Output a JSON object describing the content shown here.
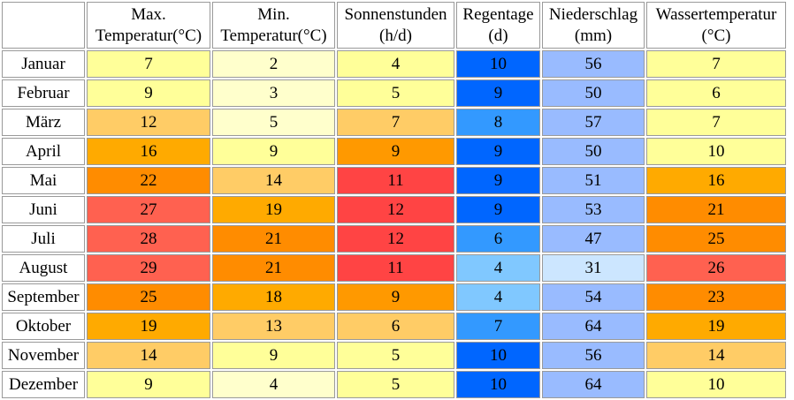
{
  "headers": [
    {
      "line1": "Max.",
      "line2": "Temperatur(°C)"
    },
    {
      "line1": "Min.",
      "line2": "Temperatur(°C)"
    },
    {
      "line1": "Sonnenstunden",
      "line2": "(h/d)"
    },
    {
      "line1": "Regentage",
      "line2": "(d)"
    },
    {
      "line1": "Niederschlag",
      "line2": "(mm)"
    },
    {
      "line1": "Wassertemperatur",
      "line2": "(°C)"
    }
  ],
  "rows": [
    {
      "month": "Januar",
      "values": [
        "7",
        "2",
        "4",
        "10",
        "56",
        "7"
      ],
      "colors": [
        "#ffff99",
        "#ffffcc",
        "#ffff99",
        "#0066ff",
        "#99bbff",
        "#ffff99"
      ]
    },
    {
      "month": "Februar",
      "values": [
        "9",
        "3",
        "5",
        "9",
        "50",
        "6"
      ],
      "colors": [
        "#ffff99",
        "#ffffcc",
        "#ffff99",
        "#0066ff",
        "#99bbff",
        "#ffff99"
      ]
    },
    {
      "month": "März",
      "values": [
        "12",
        "5",
        "7",
        "8",
        "57",
        "7"
      ],
      "colors": [
        "#ffcc66",
        "#ffffcc",
        "#ffcc66",
        "#3399ff",
        "#99bbff",
        "#ffff99"
      ]
    },
    {
      "month": "April",
      "values": [
        "16",
        "9",
        "9",
        "9",
        "50",
        "10"
      ],
      "colors": [
        "#ffaa00",
        "#ffff99",
        "#ff9900",
        "#0066ff",
        "#99bbff",
        "#ffff99"
      ]
    },
    {
      "month": "Mai",
      "values": [
        "22",
        "14",
        "11",
        "9",
        "51",
        "16"
      ],
      "colors": [
        "#ff8c00",
        "#ffcc66",
        "#ff4444",
        "#0066ff",
        "#99bbff",
        "#ffaa00"
      ]
    },
    {
      "month": "Juni",
      "values": [
        "27",
        "19",
        "12",
        "9",
        "53",
        "21"
      ],
      "colors": [
        "#ff6150",
        "#ffaa00",
        "#ff4444",
        "#0066ff",
        "#99bbff",
        "#ff8c00"
      ]
    },
    {
      "month": "Juli",
      "values": [
        "28",
        "21",
        "12",
        "6",
        "47",
        "25"
      ],
      "colors": [
        "#ff6150",
        "#ff8c00",
        "#ff4444",
        "#3399ff",
        "#99bbff",
        "#ff8c00"
      ]
    },
    {
      "month": "August",
      "values": [
        "29",
        "21",
        "11",
        "4",
        "31",
        "26"
      ],
      "colors": [
        "#ff6150",
        "#ff8c00",
        "#ff4444",
        "#80c8ff",
        "#cce6ff",
        "#ff6150"
      ]
    },
    {
      "month": "September",
      "values": [
        "25",
        "18",
        "9",
        "4",
        "54",
        "23"
      ],
      "colors": [
        "#ff8c00",
        "#ffaa00",
        "#ff9900",
        "#80c8ff",
        "#99bbff",
        "#ff8c00"
      ]
    },
    {
      "month": "Oktober",
      "values": [
        "19",
        "13",
        "6",
        "7",
        "64",
        "19"
      ],
      "colors": [
        "#ffaa00",
        "#ffcc66",
        "#ffcc66",
        "#3399ff",
        "#99bbff",
        "#ffaa00"
      ]
    },
    {
      "month": "November",
      "values": [
        "14",
        "9",
        "5",
        "10",
        "56",
        "14"
      ],
      "colors": [
        "#ffcc66",
        "#ffff99",
        "#ffff99",
        "#0066ff",
        "#99bbff",
        "#ffcc66"
      ]
    },
    {
      "month": "Dezember",
      "values": [
        "9",
        "4",
        "5",
        "10",
        "64",
        "10"
      ],
      "colors": [
        "#ffff99",
        "#ffffcc",
        "#ffff99",
        "#0066ff",
        "#99bbff",
        "#ffff99"
      ]
    }
  ]
}
